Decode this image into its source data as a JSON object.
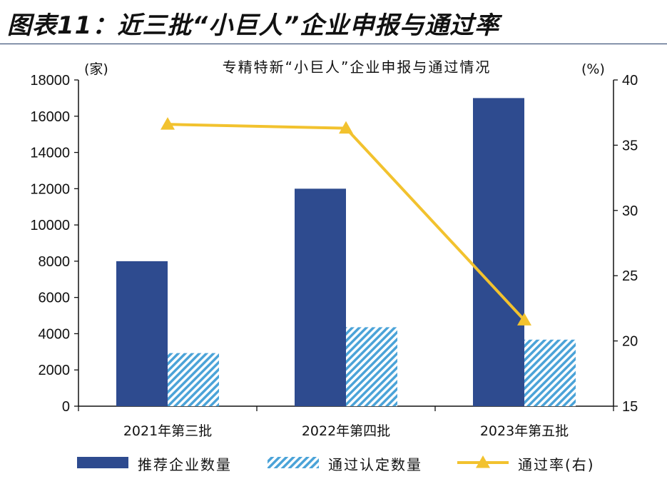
{
  "figure": {
    "title": "图表11：近三批“小巨人”企业申报与通过率"
  },
  "chart_data": {
    "type": "bar",
    "title": "专精特新“小巨人”企业申报与通过情况",
    "categories": [
      "2021年第三批",
      "2022年第四批",
      "2023年第五批"
    ],
    "left_axis": {
      "unit": "(家)",
      "ylim": [
        0,
        18000
      ],
      "ticks": [
        "0",
        "2000",
        "4000",
        "6000",
        "8000",
        "10000",
        "12000",
        "14000",
        "16000",
        "18000"
      ]
    },
    "right_axis": {
      "unit": "(%)",
      "ylim": [
        15,
        40
      ],
      "ticks": [
        "15",
        "20",
        "25",
        "30",
        "35",
        "40"
      ]
    },
    "series": [
      {
        "name": "推荐企业数量",
        "type": "bar",
        "axis": "left",
        "color": "#2e4b8f",
        "values": [
          8000,
          12000,
          17000
        ]
      },
      {
        "name": "通过认定数量",
        "type": "bar",
        "axis": "left",
        "color": "#4ba3d8",
        "pattern": "diagonal-hatch",
        "values": [
          2930,
          4357,
          3671
        ]
      },
      {
        "name": "通过率(右)",
        "type": "line",
        "axis": "right",
        "color": "#f2c22e",
        "marker": "triangle",
        "values": [
          36.6,
          36.3,
          21.6
        ]
      }
    ],
    "grid": false,
    "legend_position": "bottom"
  }
}
